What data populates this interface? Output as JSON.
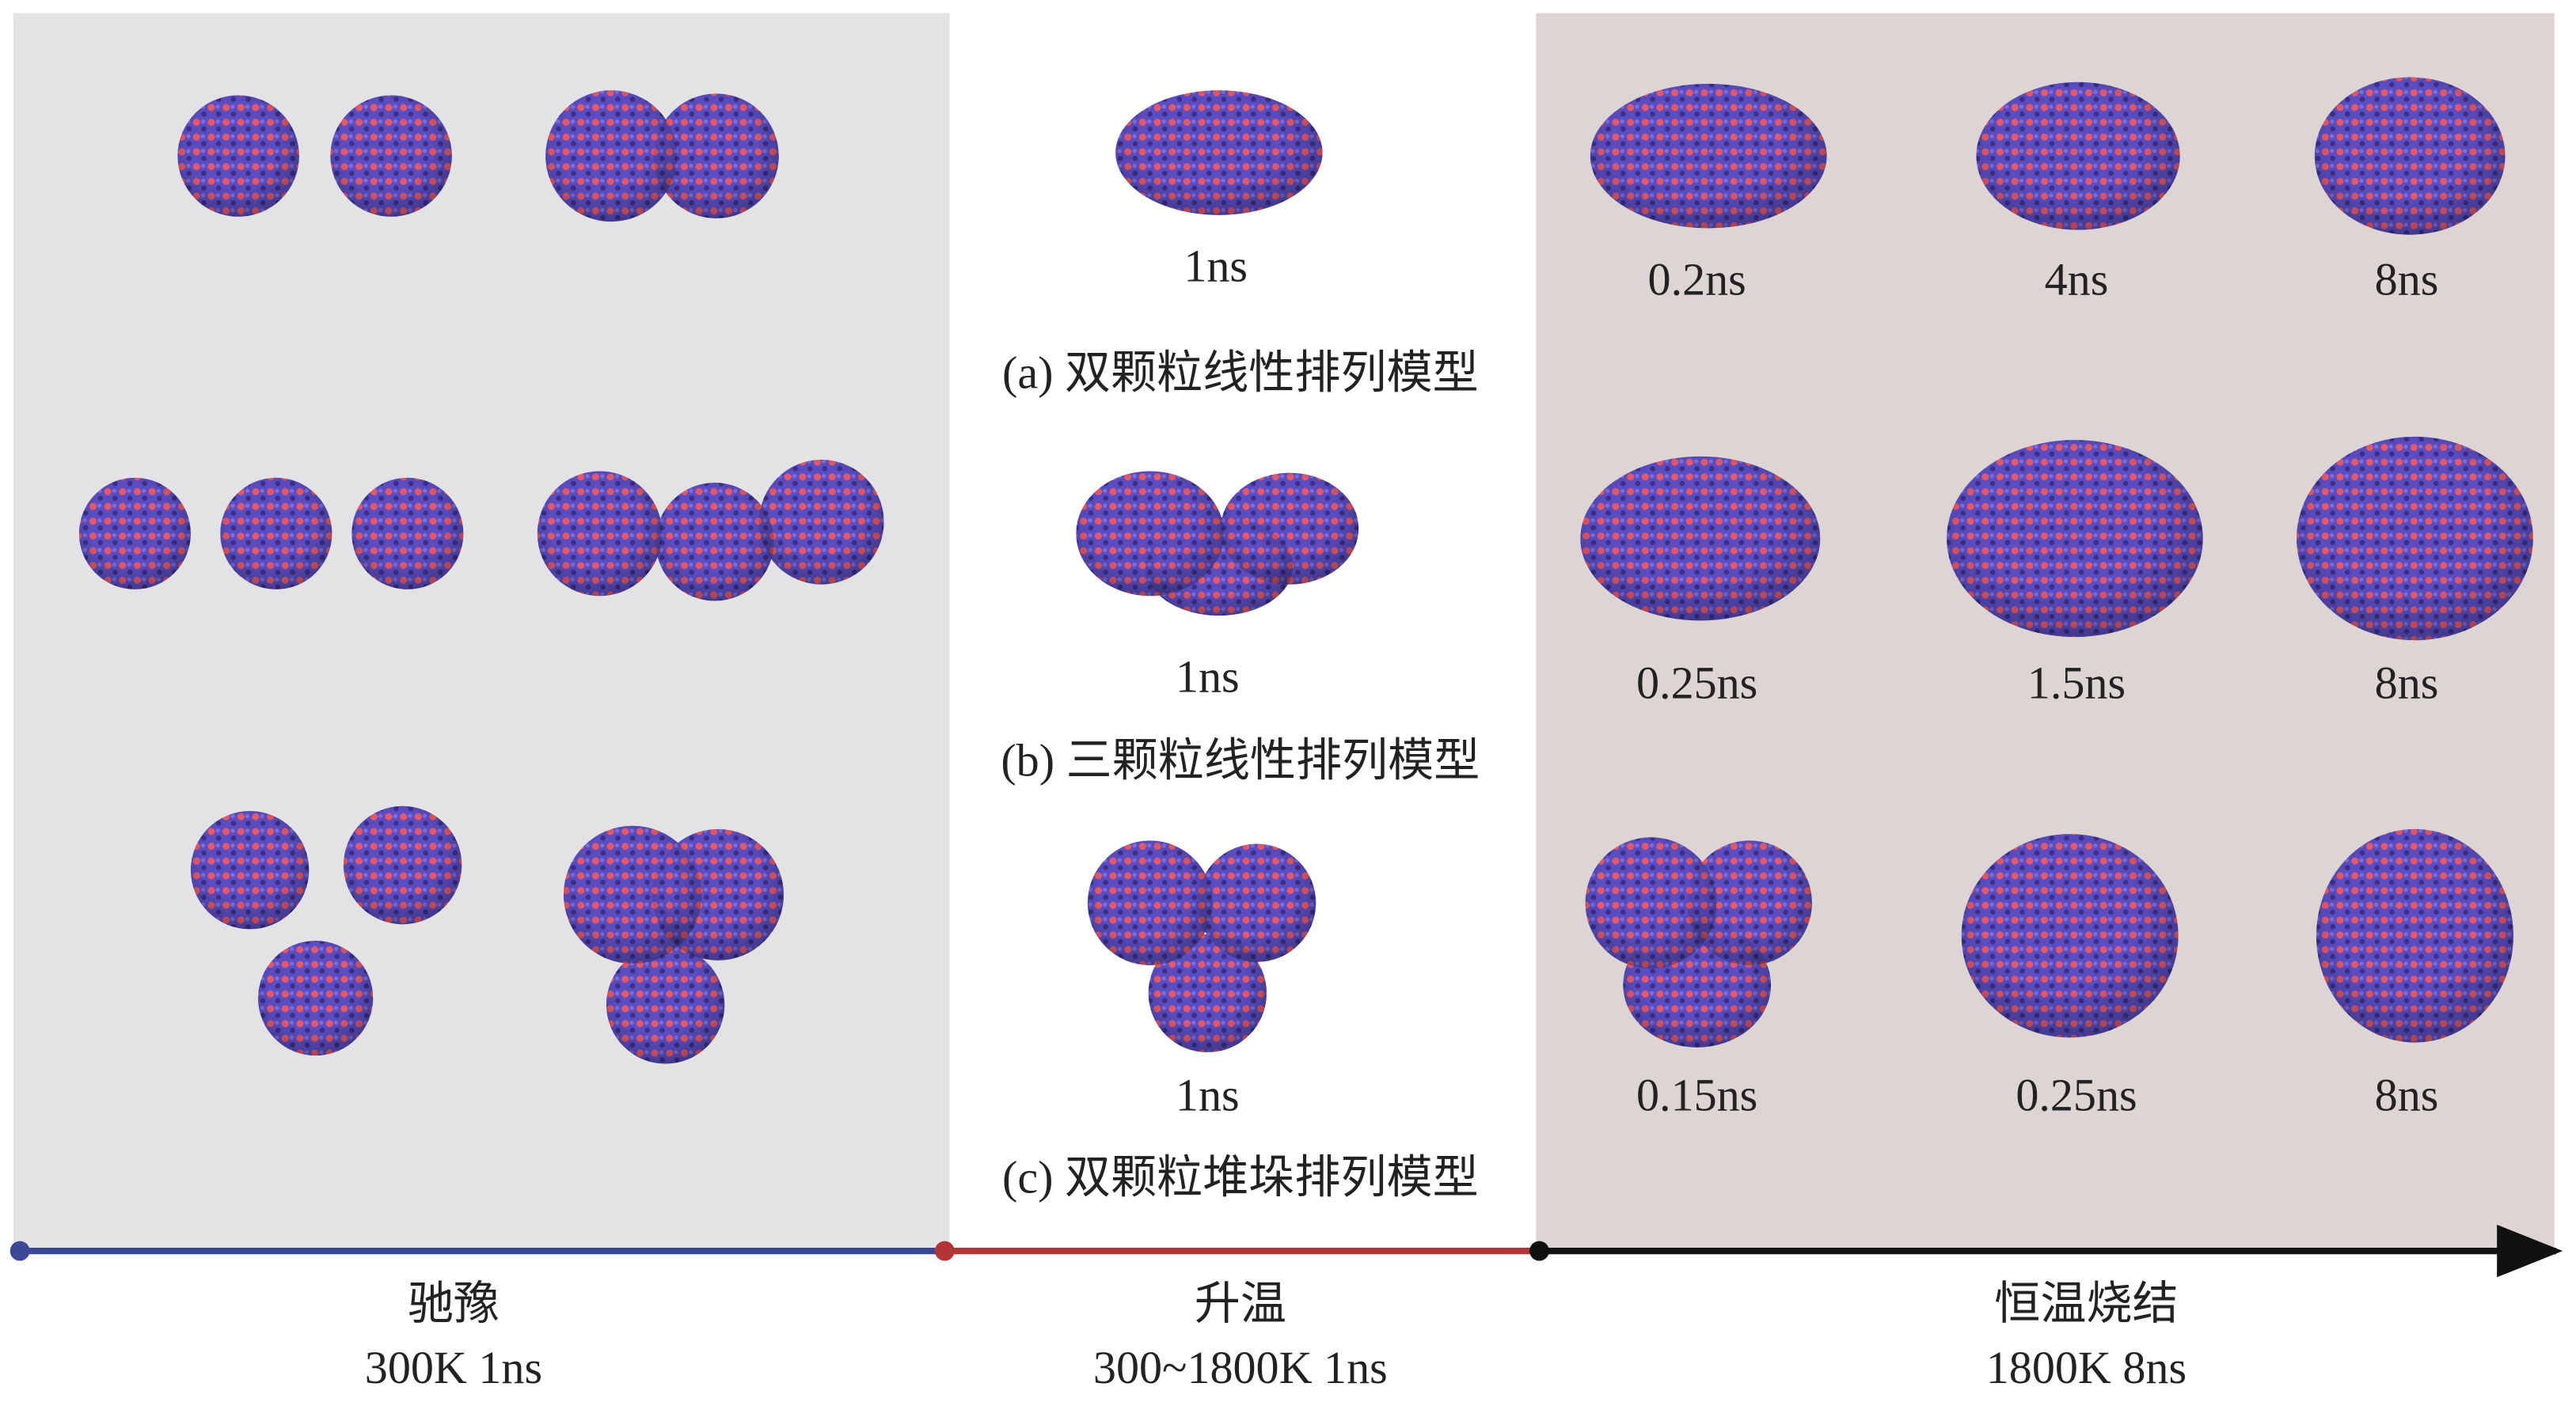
{
  "stages": [
    {
      "name": "驰豫",
      "condition": "300K   1ns"
    },
    {
      "name": "升温",
      "condition": "300~1800K   1ns"
    },
    {
      "name": "恒温烧结",
      "condition": "1800K   8ns"
    }
  ],
  "rows": [
    {
      "caption": "(a) 双颗粒线性排列模型",
      "heating_time": "1ns",
      "sintering_times": [
        "0.2ns",
        "4ns",
        "8ns"
      ]
    },
    {
      "caption": "(b) 三颗粒线性排列模型",
      "heating_time": "1ns",
      "sintering_times": [
        "0.25ns",
        "1.5ns",
        "8ns"
      ]
    },
    {
      "caption": "(c) 双颗粒堆垛排列模型",
      "heating_time": "1ns",
      "sintering_times": [
        "0.15ns",
        "0.25ns",
        "8ns"
      ]
    }
  ]
}
